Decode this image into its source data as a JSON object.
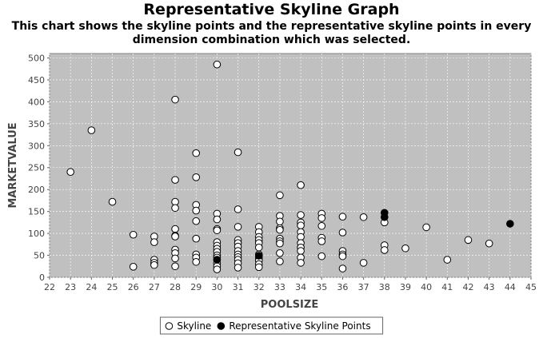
{
  "chart_data": {
    "type": "scatter",
    "title": "Representative Skyline Graph",
    "subtitle_lines": [
      "This chart shows the skyline points and the representative skyline points in every",
      "dimension combination which was selected."
    ],
    "xlabel": "POOLSIZE",
    "ylabel": "MARKETVALUE",
    "xlim": [
      22,
      45
    ],
    "ylim": [
      0,
      510
    ],
    "xticks": [
      22,
      23,
      24,
      25,
      26,
      27,
      28,
      29,
      30,
      31,
      32,
      33,
      34,
      35,
      36,
      37,
      38,
      39,
      40,
      41,
      42,
      43,
      44,
      45
    ],
    "yticks": [
      0,
      50,
      100,
      150,
      200,
      250,
      300,
      350,
      400,
      450,
      500
    ],
    "grid": true,
    "legend_position": "bottom",
    "series": [
      {
        "name": "Skyline",
        "color": "#ffffff",
        "points": [
          [
            23,
            240
          ],
          [
            24,
            335
          ],
          [
            25,
            172
          ],
          [
            26,
            97
          ],
          [
            26,
            24
          ],
          [
            27,
            93
          ],
          [
            27,
            80
          ],
          [
            27,
            40
          ],
          [
            27,
            33
          ],
          [
            27,
            28
          ],
          [
            28,
            405
          ],
          [
            28,
            222
          ],
          [
            28,
            172
          ],
          [
            28,
            158
          ],
          [
            28,
            110
          ],
          [
            28,
            95
          ],
          [
            28,
            93
          ],
          [
            28,
            63
          ],
          [
            28,
            55
          ],
          [
            28,
            43
          ],
          [
            28,
            25
          ],
          [
            29,
            283
          ],
          [
            29,
            228
          ],
          [
            29,
            165
          ],
          [
            29,
            152
          ],
          [
            29,
            128
          ],
          [
            29,
            88
          ],
          [
            29,
            52
          ],
          [
            29,
            45
          ],
          [
            29,
            35
          ],
          [
            30,
            485
          ],
          [
            30,
            145
          ],
          [
            30,
            132
          ],
          [
            30,
            110
          ],
          [
            30,
            107
          ],
          [
            30,
            80
          ],
          [
            30,
            72
          ],
          [
            30,
            65
          ],
          [
            30,
            58
          ],
          [
            30,
            50
          ],
          [
            30,
            45
          ],
          [
            30,
            40
          ],
          [
            30,
            32
          ],
          [
            30,
            25
          ],
          [
            30,
            18
          ],
          [
            31,
            285
          ],
          [
            31,
            155
          ],
          [
            31,
            115
          ],
          [
            31,
            85
          ],
          [
            31,
            78
          ],
          [
            31,
            70
          ],
          [
            31,
            60
          ],
          [
            31,
            52
          ],
          [
            31,
            46
          ],
          [
            31,
            40
          ],
          [
            31,
            32
          ],
          [
            31,
            22
          ],
          [
            32,
            115
          ],
          [
            32,
            103
          ],
          [
            32,
            92
          ],
          [
            32,
            85
          ],
          [
            32,
            78
          ],
          [
            32,
            68
          ],
          [
            32,
            52
          ],
          [
            32,
            44
          ],
          [
            32,
            38
          ],
          [
            32,
            30
          ],
          [
            32,
            23
          ],
          [
            33,
            187
          ],
          [
            33,
            140
          ],
          [
            33,
            127
          ],
          [
            33,
            112
          ],
          [
            33,
            108
          ],
          [
            33,
            88
          ],
          [
            33,
            82
          ],
          [
            33,
            77
          ],
          [
            33,
            55
          ],
          [
            33,
            36
          ],
          [
            34,
            210
          ],
          [
            34,
            142
          ],
          [
            34,
            125
          ],
          [
            34,
            118
          ],
          [
            34,
            103
          ],
          [
            34,
            92
          ],
          [
            34,
            78
          ],
          [
            34,
            68
          ],
          [
            34,
            60
          ],
          [
            34,
            45
          ],
          [
            34,
            33
          ],
          [
            35,
            145
          ],
          [
            35,
            135
          ],
          [
            35,
            117
          ],
          [
            35,
            90
          ],
          [
            35,
            82
          ],
          [
            35,
            48
          ],
          [
            36,
            138
          ],
          [
            36,
            102
          ],
          [
            36,
            60
          ],
          [
            36,
            52
          ],
          [
            36,
            48
          ],
          [
            36,
            20
          ],
          [
            37,
            137
          ],
          [
            37,
            33
          ],
          [
            38,
            125
          ],
          [
            38,
            73
          ],
          [
            38,
            62
          ],
          [
            39,
            66
          ],
          [
            40,
            114
          ],
          [
            41,
            40
          ],
          [
            42,
            85
          ],
          [
            43,
            77
          ]
        ]
      },
      {
        "name": "Representative Skyline Points",
        "color": "#000000",
        "points": [
          [
            38,
            147
          ],
          [
            38,
            137
          ],
          [
            44,
            122
          ],
          [
            32,
            49
          ],
          [
            30,
            40
          ]
        ]
      }
    ]
  }
}
